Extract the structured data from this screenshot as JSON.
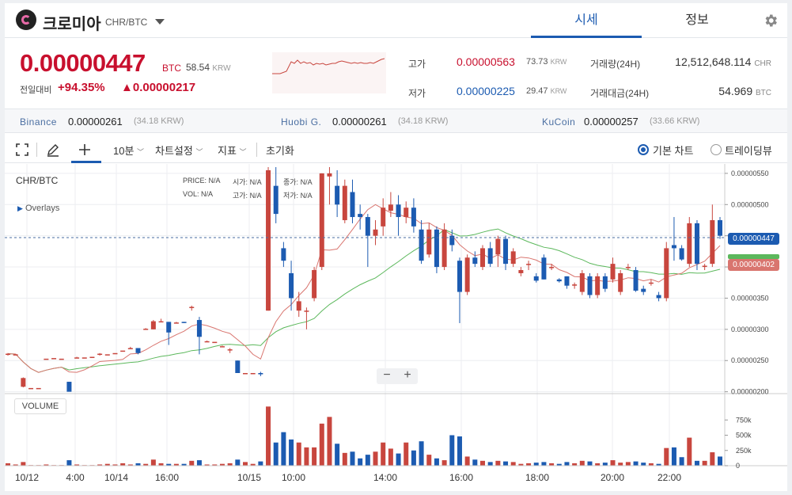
{
  "header": {
    "coin_name": "크로미아",
    "pair": "CHR/BTC",
    "tabs": [
      {
        "label": "시세"
      },
      {
        "label": "정보"
      }
    ]
  },
  "price": {
    "current": "0.00000447",
    "unit": "BTC",
    "krw": "58.54",
    "krw_unit": "KRW",
    "change_label": "전일대비",
    "change_pct": "+94.35%",
    "change_abs": "▲0.00000217"
  },
  "stats": {
    "high_label": "고가",
    "high": "0.00000563",
    "high_krw": "73.73",
    "low_label": "저가",
    "low": "0.00000225",
    "low_krw": "29.47",
    "krw_unit": "KRW",
    "volume_label": "거래량(24H)",
    "volume": "12,512,648.114",
    "volume_unit": "CHR",
    "value_label": "거래대금(24H)",
    "value": "54.969",
    "value_unit": "BTC"
  },
  "exchanges": [
    {
      "name": "Binance",
      "price": "0.00000261",
      "krw": "(34.18 KRW)"
    },
    {
      "name": "Huobi G.",
      "price": "0.00000261",
      "krw": "(34.18 KRW)"
    },
    {
      "name": "KuCoin",
      "price": "0.00000257",
      "krw": "(33.66 KRW)"
    }
  ],
  "toolbar": {
    "interval": "10분",
    "chart_settings": "차트설정",
    "indicators": "지표",
    "reset": "초기화",
    "radio_basic": "기본 차트",
    "radio_tv": "트레이딩뷰"
  },
  "chart": {
    "pair_label": "CHR/BTC",
    "overlays_label": "Overlays",
    "ohlc": {
      "price_label": "PRICE:",
      "price_val": "N/A",
      "open_label": "시가:",
      "open_val": "N/A",
      "close_label": "종가:",
      "close_val": "N/A",
      "vol_label": "VOL:",
      "vol_val": "N/A",
      "high_label": "고가:",
      "high_val": "N/A",
      "low_label": "저가:",
      "low_val": "N/A"
    },
    "volume_label": "VOLUME",
    "zoom_minus": "−",
    "zoom_plus": "+",
    "price_tag_current": "0.00000447",
    "price_tag_ma": "0.00000402"
  },
  "chart_data": {
    "type": "candlestick",
    "y_ticks": [
      "0.00000550",
      "0.00000500",
      "0.00000450",
      "0.00000400",
      "0.00000350",
      "0.00000300",
      "0.00000250",
      "0.00000200"
    ],
    "y_values": [
      5.5e-06,
      5e-06,
      4.5e-06,
      4e-06,
      3.5e-06,
      3e-06,
      2.5e-06,
      2e-06
    ],
    "ylim": [
      1.97e-06,
      5.6e-06
    ],
    "vol_ticks": [
      "750k",
      "500k",
      "250k",
      "0"
    ],
    "vol_values": [
      750000,
      500000,
      250000,
      0
    ],
    "x_labels": [
      "10/12",
      "4:00",
      "10/14",
      "16:00",
      "10/15",
      "10:00",
      "14:00",
      "16:00",
      "18:00",
      "20:00",
      "22:00"
    ],
    "candle_colors": {
      "up": "#c8463e",
      "down": "#1c5bb1"
    },
    "ma_colors": {
      "fast": "#d9756f",
      "slow": "#5cb85c"
    },
    "candles": [
      [
        2.6e-06,
        2.62e-06,
        2.58e-06,
        2.61e-06,
        40000
      ],
      [
        2.6e-06,
        2.6e-06,
        2.6e-06,
        2.6e-06,
        20000
      ],
      [
        2.08e-06,
        2.23e-06,
        2.07e-06,
        2.22e-06,
        60000
      ],
      [
        2.06e-06,
        2.06e-06,
        2.06e-06,
        2.06e-06,
        10000
      ],
      [
        2.06e-06,
        2.06e-06,
        2.06e-06,
        2.06e-06,
        10000
      ],
      [
        2.53e-06,
        2.53e-06,
        2.53e-06,
        2.53e-06,
        20000
      ],
      [
        2.54e-06,
        2.54e-06,
        2.54e-06,
        2.54e-06,
        10000
      ],
      [
        2.53e-06,
        2.53e-06,
        2.53e-06,
        2.53e-06,
        10000
      ],
      [
        2.16e-06,
        2.16e-06,
        2.16e-06,
        2e-06,
        90000
      ],
      [
        2.54e-06,
        2.56e-06,
        2.54e-06,
        2.55e-06,
        20000
      ],
      [
        2.55e-06,
        2.55e-06,
        2.55e-06,
        2.55e-06,
        10000
      ],
      [
        2.56e-06,
        2.56e-06,
        2.56e-06,
        2.56e-06,
        10000
      ],
      [
        2.6e-06,
        2.62e-06,
        2.58e-06,
        2.61e-06,
        20000
      ],
      [
        2.6e-06,
        2.6e-06,
        2.6e-06,
        2.6e-06,
        30000
      ],
      [
        2.62e-06,
        2.62e-06,
        2.62e-06,
        2.62e-06,
        20000
      ],
      [
        2.66e-06,
        2.66e-06,
        2.66e-06,
        2.66e-06,
        40000
      ],
      [
        2.69e-06,
        2.72e-06,
        2.69e-06,
        2.7e-06,
        20000
      ],
      [
        2.7e-06,
        2.7e-06,
        2.6e-06,
        2.62e-06,
        40000
      ],
      [
        3e-06,
        3.02e-06,
        3e-06,
        3.01e-06,
        30000
      ],
      [
        3e-06,
        3.15e-06,
        3e-06,
        3.13e-06,
        100000
      ],
      [
        3.13e-06,
        3.17e-06,
        3.12e-06,
        3.13e-06,
        40000
      ],
      [
        3.12e-06,
        3.12e-06,
        2.75e-06,
        2.95e-06,
        30000
      ],
      [
        3.1e-06,
        3.12e-06,
        3.1e-06,
        3.11e-06,
        30000
      ],
      [
        3.12e-06,
        3.12e-06,
        3.1e-06,
        3.11e-06,
        30000
      ],
      [
        3.36e-06,
        3.38e-06,
        3.3e-06,
        3.36e-06,
        80000
      ],
      [
        3.15e-06,
        3.2e-06,
        2.6e-06,
        2.88e-06,
        90000
      ],
      [
        2.8e-06,
        2.82e-06,
        2.8e-06,
        2.81e-06,
        20000
      ],
      [
        2.8e-06,
        2.8e-06,
        2.8e-06,
        2.8e-06,
        20000
      ],
      [
        2.73e-06,
        2.74e-06,
        2.73e-06,
        2.73e-06,
        30000
      ],
      [
        2.68e-06,
        2.7e-06,
        2.62e-06,
        2.68e-06,
        40000
      ],
      [
        2.5e-06,
        2.5e-06,
        2.3e-06,
        2.3e-06,
        100000
      ],
      [
        2.3e-06,
        2.3e-06,
        2.3e-06,
        2.3e-06,
        60000
      ],
      [
        2.3e-06,
        2.3e-06,
        2.3e-06,
        2.3e-06,
        30000
      ],
      [
        2.3e-06,
        2.32e-06,
        2.25e-06,
        2.28e-06,
        70000
      ],
      [
        3.3e-06,
        5.6e-06,
        3.3e-06,
        5.55e-06,
        970000
      ],
      [
        5.3e-06,
        5.6e-06,
        4.7e-06,
        4.85e-06,
        380000
      ],
      [
        4.3e-06,
        4.4e-06,
        4e-06,
        4.1e-06,
        550000
      ],
      [
        3.9e-06,
        4.1e-06,
        3.3e-06,
        3.5e-06,
        430000
      ],
      [
        3.3e-06,
        3.6e-06,
        3.2e-06,
        3.45e-06,
        380000
      ],
      [
        3.3e-06,
        3.35e-06,
        3e-06,
        3.3e-06,
        300000
      ],
      [
        3.5e-06,
        4e-06,
        3.45e-06,
        3.95e-06,
        300000
      ],
      [
        4e-06,
        5.5e-06,
        3.95e-06,
        5.5e-06,
        690000
      ],
      [
        5.45e-06,
        5.6e-06,
        5e-06,
        5.5e-06,
        800000
      ],
      [
        5.3e-06,
        5.55e-06,
        4.8e-06,
        5e-06,
        360000
      ],
      [
        4.75e-06,
        5.4e-06,
        4.7e-06,
        5.3e-06,
        210000
      ],
      [
        5.2e-06,
        5.4e-06,
        4.7e-06,
        4.8e-06,
        230000
      ],
      [
        4.85e-06,
        5e-06,
        4.6e-06,
        4.8e-06,
        120000
      ],
      [
        4.8e-06,
        4.85e-06,
        4e-06,
        4.5e-06,
        180000
      ],
      [
        4.5e-06,
        4.75e-06,
        4.35e-06,
        4.6e-06,
        230000
      ],
      [
        4.65e-06,
        5.1e-06,
        4.5e-06,
        4.95e-06,
        380000
      ],
      [
        4.9e-06,
        5.2e-06,
        4.8e-06,
        5e-06,
        280000
      ],
      [
        5e-06,
        5.15e-06,
        4.5e-06,
        4.8e-06,
        200000
      ],
      [
        4.8e-06,
        5.05e-06,
        4.7e-06,
        4.95e-06,
        380000
      ],
      [
        4.95e-06,
        5.1e-06,
        4.55e-06,
        4.65e-06,
        250000
      ],
      [
        4.6e-06,
        4.75e-06,
        4.05e-06,
        4.1e-06,
        400000
      ],
      [
        4.2e-06,
        4.7e-06,
        4.15e-06,
        4.6e-06,
        180000
      ],
      [
        4.6e-06,
        4.65e-06,
        3.9e-06,
        4e-06,
        120000
      ],
      [
        4e-06,
        4.7e-06,
        3.95e-06,
        4.6e-06,
        90000
      ],
      [
        4.5e-06,
        4.6e-06,
        4.25e-06,
        4.35e-06,
        500000
      ],
      [
        4.1e-06,
        4.15e-06,
        3.1e-06,
        3.6e-06,
        480000
      ],
      [
        3.6e-06,
        4.2e-06,
        3.55e-06,
        4.15e-06,
        150000
      ],
      [
        4.15e-06,
        4.25e-06,
        4e-06,
        4.05e-06,
        100000
      ],
      [
        4e-06,
        4.35e-06,
        3.95e-06,
        4.3e-06,
        80000
      ],
      [
        4.3e-06,
        4.4e-06,
        4e-06,
        4.05e-06,
        60000
      ],
      [
        4.2e-06,
        4.5e-06,
        4e-06,
        4.45e-06,
        80000
      ],
      [
        4.45e-06,
        4.5e-06,
        3.95e-06,
        4.05e-06,
        70000
      ],
      [
        4.05e-06,
        4.3e-06,
        4e-06,
        4.25e-06,
        60000
      ],
      [
        3.9e-06,
        4e-06,
        3.85e-06,
        3.95e-06,
        30000
      ],
      [
        4.05e-06,
        4.1e-06,
        3.95e-06,
        4.05e-06,
        40000
      ],
      [
        3.85e-06,
        3.9e-06,
        3.75e-06,
        3.78e-06,
        50000
      ],
      [
        4.15e-06,
        4.2e-06,
        3.8e-06,
        3.8e-06,
        60000
      ],
      [
        4e-06,
        4.05e-06,
        3.95e-06,
        4e-06,
        40000
      ],
      [
        3.8e-06,
        3.82e-06,
        3.75e-06,
        3.77e-06,
        30000
      ],
      [
        3.85e-06,
        3.85e-06,
        3.65e-06,
        3.7e-06,
        60000
      ],
      [
        3.7e-06,
        3.75e-06,
        3.65e-06,
        3.72e-06,
        40000
      ],
      [
        3.6e-06,
        3.95e-06,
        3.55e-06,
        3.9e-06,
        80000
      ],
      [
        3.85e-06,
        3.9e-06,
        3.5e-06,
        3.55e-06,
        70000
      ],
      [
        3.55e-06,
        3.9e-06,
        3.5e-06,
        3.85e-06,
        40000
      ],
      [
        3.85e-06,
        3.9e-06,
        3.6e-06,
        3.65e-06,
        50000
      ],
      [
        3.8e-06,
        4.15e-06,
        3.75e-06,
        4.05e-06,
        90000
      ],
      [
        3.6e-06,
        3.95e-06,
        3.55e-06,
        3.9e-06,
        50000
      ],
      [
        4e-06,
        4.05e-06,
        3.95e-06,
        4e-06,
        60000
      ],
      [
        3.95e-06,
        4e-06,
        3.6e-06,
        3.62e-06,
        70000
      ],
      [
        3.65e-06,
        3.7e-06,
        3.55e-06,
        3.6e-06,
        50000
      ],
      [
        3.75e-06,
        3.8e-06,
        3.7e-06,
        3.75e-06,
        40000
      ],
      [
        3.55e-06,
        3.6e-06,
        3.45e-06,
        3.5e-06,
        30000
      ],
      [
        3.5e-06,
        4.4e-06,
        3.45e-06,
        4.3e-06,
        290000
      ],
      [
        4.35e-06,
        4.8e-06,
        4.1e-06,
        4.3e-06,
        300000
      ],
      [
        4.3e-06,
        4.35e-06,
        4.1e-06,
        4.12e-06,
        140000
      ],
      [
        4.05e-06,
        4.8e-06,
        4e-06,
        4.7e-06,
        460000
      ],
      [
        4.7e-06,
        4.75e-06,
        3.95e-06,
        4.05e-06,
        80000
      ],
      [
        4e-06,
        4.05e-06,
        3.95e-06,
        4.02e-06,
        80000
      ],
      [
        4.05e-06,
        5e-06,
        4e-06,
        4.75e-06,
        220000
      ],
      [
        4.75e-06,
        4.8e-06,
        4.45e-06,
        4.5e-06,
        150000
      ]
    ]
  }
}
